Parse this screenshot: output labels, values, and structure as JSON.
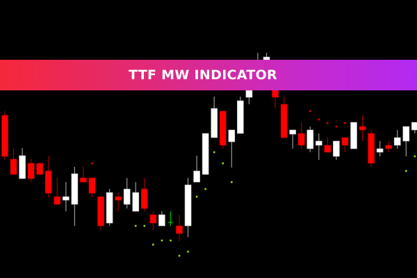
{
  "banner": {
    "title": "TTF MW INDICATOR"
  },
  "colors": {
    "background": "#000000",
    "bull": "#ffffff",
    "bear": "#ff0000",
    "doji": "#00c000",
    "support_dot": "#8fe000",
    "resistance_dot": "#e00000"
  },
  "chart_data": {
    "type": "candlestick",
    "title": "",
    "xlabel": "",
    "ylabel": "",
    "grid": false,
    "ylim": [
      0,
      400
    ],
    "candles_ohlc": [
      [
        234,
        240,
        170,
        175
      ],
      [
        171,
        187,
        149,
        149
      ],
      [
        143,
        187,
        143,
        176
      ],
      [
        165,
        171,
        138,
        143
      ],
      [
        165,
        165,
        149,
        149
      ],
      [
        154,
        175,
        116,
        122
      ],
      [
        117,
        144,
        106,
        106
      ],
      [
        112,
        138,
        96,
        117
      ],
      [
        106,
        160,
        75,
        150
      ],
      [
        144,
        160,
        138,
        138
      ],
      [
        144,
        144,
        116,
        122
      ],
      [
        117,
        117,
        69,
        75
      ],
      [
        79,
        128,
        75,
        123
      ],
      [
        117,
        123,
        96,
        112
      ],
      [
        106,
        144,
        100,
        128
      ],
      [
        96,
        138,
        96,
        123
      ],
      [
        128,
        144,
        96,
        100
      ],
      [
        91,
        96,
        69,
        79
      ],
      [
        75,
        96,
        75,
        91
      ],
      [
        80,
        96,
        75,
        80
      ],
      [
        75,
        91,
        53,
        64
      ],
      [
        75,
        144,
        59,
        134
      ],
      [
        138,
        176,
        138,
        154
      ],
      [
        149,
        208,
        149,
        208
      ],
      [
        202,
        261,
        202,
        244
      ],
      [
        240,
        240,
        186,
        191
      ],
      [
        196,
        213,
        159,
        213
      ],
      [
        208,
        261,
        208,
        255
      ],
      [
        260,
        275,
        250,
        270
      ],
      [
        300,
        324,
        290,
        310
      ],
      [
        300,
        324,
        290,
        318
      ],
      [
        285,
        290,
        244,
        260
      ],
      [
        250,
        261,
        202,
        202
      ],
      [
        207,
        213,
        186,
        213
      ],
      [
        208,
        224,
        186,
        191
      ],
      [
        186,
        218,
        181,
        213
      ],
      [
        191,
        208,
        170,
        197
      ],
      [
        191,
        202,
        181,
        181
      ],
      [
        175,
        197,
        170,
        197
      ],
      [
        202,
        202,
        181,
        191
      ],
      [
        186,
        224,
        186,
        224
      ],
      [
        218,
        234,
        197,
        213
      ],
      [
        208,
        213,
        160,
        165
      ],
      [
        181,
        197,
        175,
        186
      ],
      [
        191,
        197,
        181,
        186
      ],
      [
        191,
        213,
        186,
        202
      ],
      [
        197,
        218,
        175,
        218
      ],
      [
        213,
        224,
        208,
        224
      ]
    ],
    "support_dots": [
      [
        15,
        75
      ],
      [
        16,
        75
      ],
      [
        17,
        48
      ],
      [
        18,
        54
      ],
      [
        19,
        54
      ],
      [
        20,
        32
      ],
      [
        21,
        38
      ],
      [
        22,
        117
      ],
      [
        23,
        128
      ],
      [
        24,
        181
      ],
      [
        25,
        165
      ],
      [
        26,
        138
      ],
      [
        46,
        154
      ],
      [
        47,
        175
      ]
    ],
    "resistance_dots": [
      [
        10,
        165
      ],
      [
        35,
        240
      ],
      [
        36,
        228
      ],
      [
        37,
        223
      ],
      [
        38,
        218
      ],
      [
        39,
        223
      ]
    ]
  }
}
